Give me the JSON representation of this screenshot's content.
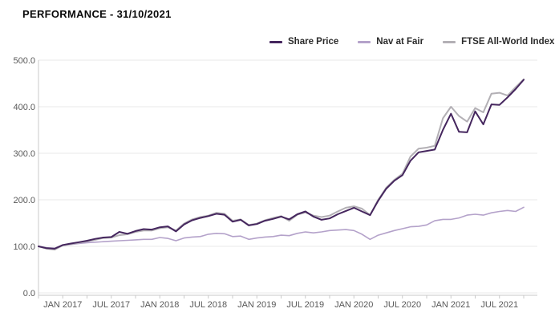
{
  "header": {
    "title": "PERFORMANCE - 31/10/2021"
  },
  "chart_data": {
    "type": "line",
    "title": "PERFORMANCE - 31/10/2021",
    "x_start": "OCT 2016",
    "x_end": "OCT 2021",
    "x_frequency": "monthly",
    "ylim": [
      0,
      500
    ],
    "y_tick_labels": [
      "0.0",
      "100.0",
      "200.0",
      "300.0",
      "400.0",
      "500.0"
    ],
    "y_tick_values": [
      0,
      100,
      200,
      300,
      400,
      500
    ],
    "x_ticks": [
      {
        "label": "JAN 2017",
        "month_index": 3
      },
      {
        "label": "JUL 2017",
        "month_index": 9
      },
      {
        "label": "JAN 2018",
        "month_index": 15
      },
      {
        "label": "JUL 2018",
        "month_index": 21
      },
      {
        "label": "JAN 2019",
        "month_index": 27
      },
      {
        "label": "JUL 2019",
        "month_index": 33
      },
      {
        "label": "JAN 2020",
        "month_index": 39
      },
      {
        "label": "JUL 2020",
        "month_index": 45
      },
      {
        "label": "JAN 2021",
        "month_index": 51
      },
      {
        "label": "JUL 2021",
        "month_index": 57
      }
    ],
    "grid": "horizontal",
    "legend_position": "top",
    "colors": {
      "axis": "#c9c9c9",
      "gridline": "#e8e8e8",
      "tick_label": "#595959"
    },
    "series": [
      {
        "name": "Share Price",
        "color": "#45265e",
        "values": [
          100,
          96,
          95,
          103,
          106,
          109,
          112,
          116,
          119,
          120,
          131,
          127,
          133,
          137,
          136,
          141,
          143,
          132,
          147,
          156,
          161,
          165,
          170,
          168,
          153,
          157,
          145,
          148,
          155,
          159,
          164,
          158,
          169,
          175,
          164,
          157,
          160,
          169,
          176,
          183,
          175,
          167,
          198,
          224,
          241,
          253,
          284,
          302,
          305,
          308,
          350,
          385,
          346,
          345,
          390,
          362,
          405,
          404,
          420,
          438,
          458
        ]
      },
      {
        "name": "Nav at Fair",
        "color": "#b4a2ca",
        "values": [
          100,
          97,
          96,
          102,
          104,
          106,
          108,
          109,
          110,
          111,
          112,
          113,
          114,
          115,
          115,
          119,
          117,
          112,
          118,
          120,
          121,
          126,
          128,
          127,
          121,
          122,
          115,
          118,
          120,
          121,
          124,
          123,
          128,
          131,
          129,
          131,
          134,
          135,
          136,
          134,
          126,
          115,
          124,
          129,
          134,
          138,
          142,
          143,
          146,
          155,
          158,
          158,
          161,
          167,
          169,
          167,
          172,
          175,
          177,
          175,
          184
        ]
      },
      {
        "name": "FTSE All-World Index",
        "color": "#b3b0b5",
        "values": [
          100,
          95,
          93,
          102,
          105,
          108,
          111,
          114,
          118,
          119,
          124,
          126,
          131,
          134,
          134,
          139,
          141,
          134,
          149,
          158,
          163,
          166,
          172,
          170,
          155,
          158,
          146,
          149,
          156,
          161,
          165,
          155,
          168,
          173,
          166,
          163,
          166,
          175,
          183,
          186,
          181,
          167,
          200,
          226,
          243,
          256,
          293,
          310,
          312,
          316,
          375,
          400,
          380,
          368,
          397,
          388,
          428,
          430,
          424,
          442,
          459
        ]
      }
    ]
  }
}
